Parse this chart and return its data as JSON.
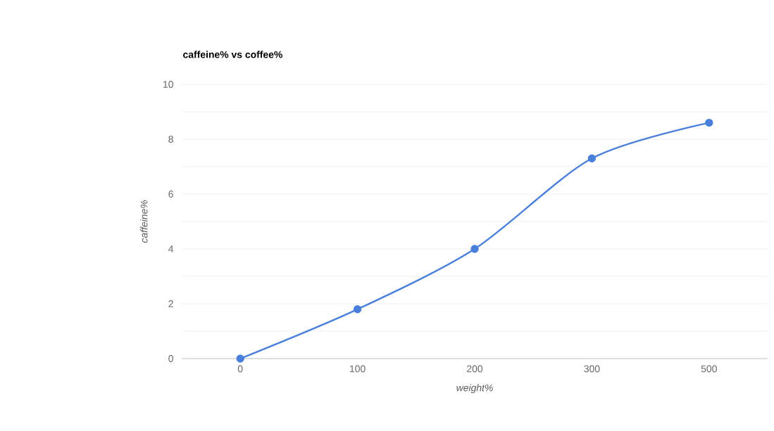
{
  "chart_data": {
    "type": "line",
    "title": "caffeine% vs coffee%",
    "xlabel": "weight%",
    "ylabel": "caffeine%",
    "categories": [
      "0",
      "100",
      "200",
      "300",
      "500"
    ],
    "values": [
      0,
      1.8,
      4.0,
      7.3,
      8.6
    ],
    "color": "#4a7fdc",
    "ylim": [
      0,
      10
    ],
    "yticks": [
      0,
      {
        "value": 1,
        "label": null
      },
      2,
      {
        "value": 3,
        "label": null
      },
      4,
      {
        "value": 5,
        "label": null
      },
      6,
      {
        "value": 7,
        "label": null
      },
      8,
      {
        "value": 9,
        "label": null
      },
      10
    ],
    "grid": "y",
    "marker": "circle",
    "line_style": "solid"
  }
}
